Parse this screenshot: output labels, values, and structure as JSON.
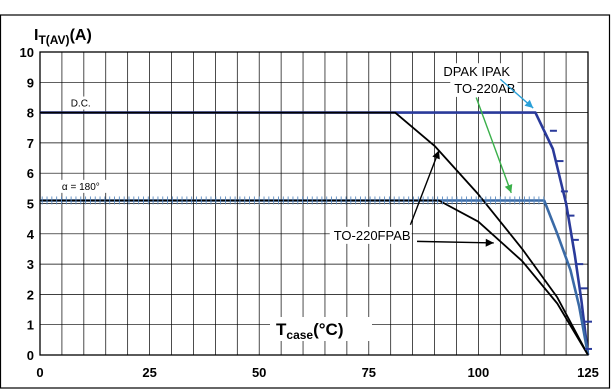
{
  "chart_data": {
    "type": "line",
    "title": "",
    "ylabel": "IT(AV)(A)",
    "ylabel_parts": {
      "main": "I",
      "sub": "T(AV)",
      "unit": "(A)"
    },
    "xlabel": "Tcase(°C)",
    "xlabel_parts": {
      "main": "T",
      "sub": "case",
      "unit": "(°C)"
    },
    "xlim": [
      0,
      125
    ],
    "ylim": [
      0,
      10
    ],
    "grid": true,
    "xticks": [
      0,
      25,
      50,
      75,
      100,
      125
    ],
    "yticks": [
      0,
      1,
      2,
      3,
      4,
      5,
      6,
      7,
      8,
      9,
      10
    ],
    "series": [
      {
        "name": "DPAK IPAK / TO-220AB, D.C.",
        "color": "#2a3a9a",
        "points": [
          [
            0,
            8.0
          ],
          [
            113,
            8.0
          ],
          [
            117,
            6.8
          ],
          [
            120,
            5.0
          ],
          [
            122,
            3.3
          ],
          [
            123.5,
            1.8
          ],
          [
            125,
            0
          ]
        ]
      },
      {
        "name": "DPAK IPAK / TO-220AB, α = 180°",
        "color": "#3a6aa6",
        "points": [
          [
            0,
            5.1
          ],
          [
            115,
            5.1
          ],
          [
            118,
            4.0
          ],
          [
            121,
            2.8
          ],
          [
            123,
            1.6
          ],
          [
            125,
            0
          ]
        ]
      },
      {
        "name": "TO-220FPAB, D.C.",
        "color": "#000000",
        "points": [
          [
            0,
            8.0
          ],
          [
            81,
            8.0
          ],
          [
            90,
            6.9
          ],
          [
            100,
            5.3
          ],
          [
            110,
            3.5
          ],
          [
            118,
            1.9
          ],
          [
            125,
            0
          ]
        ]
      },
      {
        "name": "TO-220FPAB, α = 180°",
        "color": "#000000",
        "points": [
          [
            0,
            5.1
          ],
          [
            91,
            5.1
          ],
          [
            100,
            4.4
          ],
          [
            110,
            3.1
          ],
          [
            118,
            1.7
          ],
          [
            125,
            0
          ]
        ]
      }
    ],
    "annotations": {
      "dc": "D.C.",
      "alpha": "α = 180°",
      "dpak": "DPAK  IPAK",
      "to220ab": "TO-220AB",
      "to220fpab": "TO-220FPAB"
    }
  }
}
